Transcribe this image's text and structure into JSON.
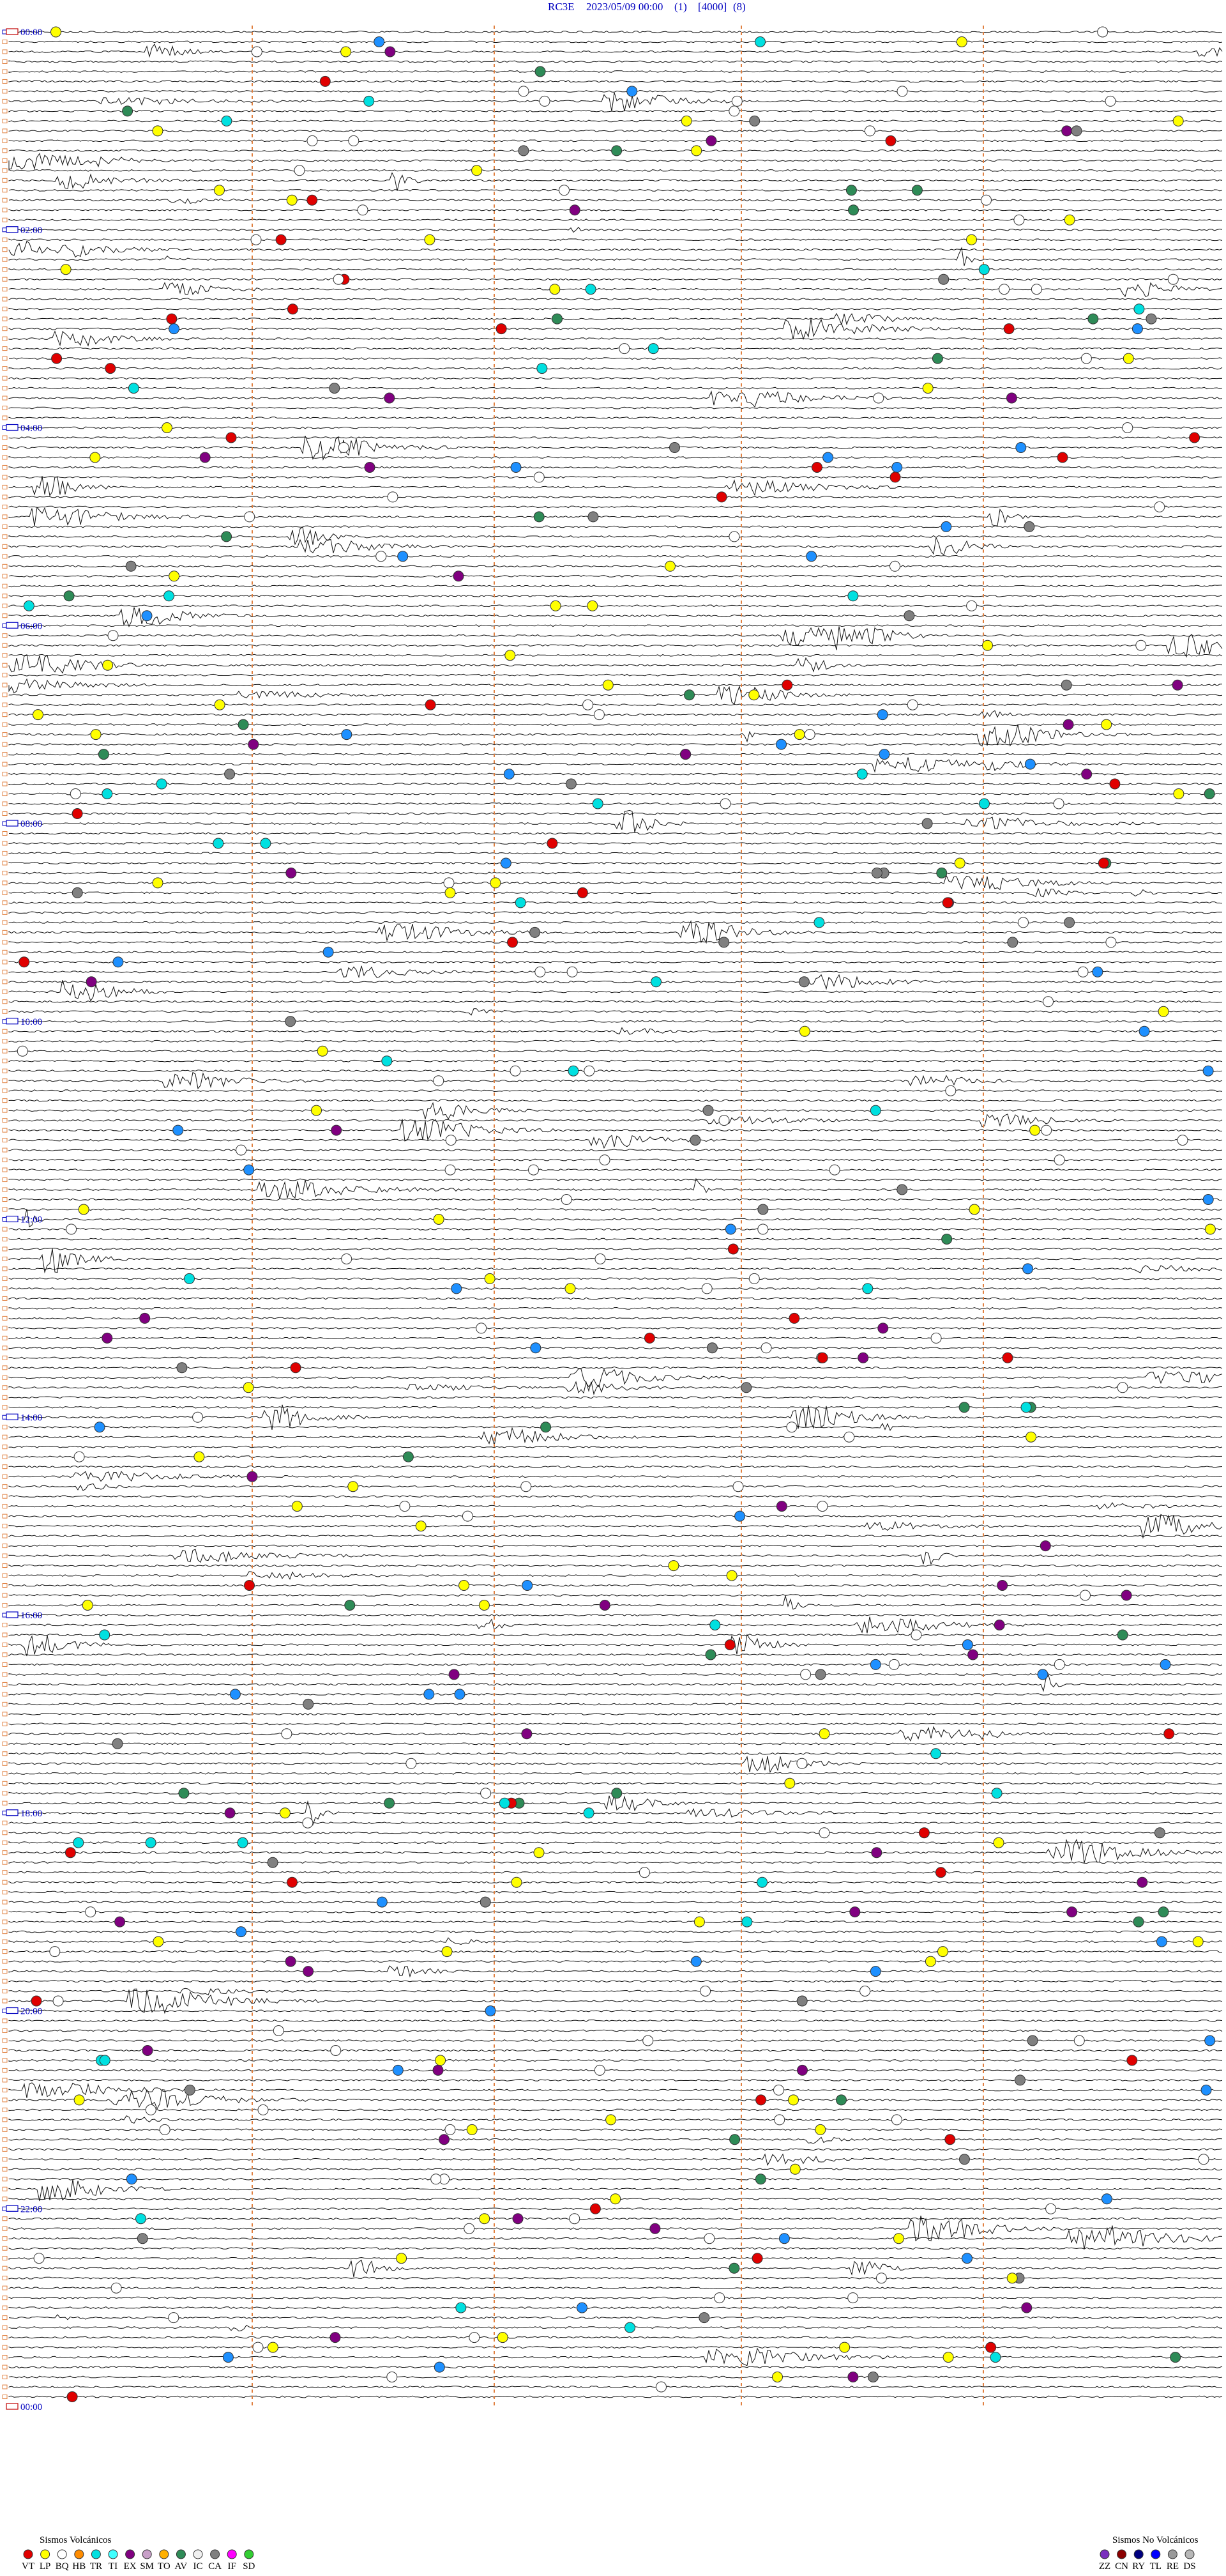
{
  "header": {
    "parts": [
      "RC3E",
      "2023/05/09 00:00",
      "(1)",
      "[4000]",
      "(8)"
    ]
  },
  "time_labels": [
    "00:00",
    "02:00",
    "04:00",
    "06:00",
    "08:00",
    "10:00",
    "12:00",
    "14:00",
    "16:00",
    "18:00",
    "20:00",
    "22:00",
    "00:00"
  ],
  "legend": {
    "volcanic": {
      "title": "Sismos Volcánicos",
      "items": [
        {
          "code": "VT",
          "color": "#e00000"
        },
        {
          "code": "LP",
          "color": "#ffff00"
        },
        {
          "code": "BQ",
          "color": "#ffffff"
        },
        {
          "code": "HB",
          "color": "#ff8c00"
        },
        {
          "code": "TR",
          "color": "#00e0e0"
        },
        {
          "code": "TI",
          "color": "#40ffff"
        },
        {
          "code": "EX",
          "color": "#800080"
        },
        {
          "code": "SM",
          "color": "#c8a0c8"
        },
        {
          "code": "TO",
          "color": "#ffb000"
        },
        {
          "code": "AV",
          "color": "#2e8b57"
        },
        {
          "code": "IC",
          "color": "#f0f0f0"
        },
        {
          "code": "CA",
          "color": "#808080"
        },
        {
          "code": "IF",
          "color": "#ff00ff"
        },
        {
          "code": "SD",
          "color": "#32cd32"
        }
      ]
    },
    "non_volcanic": {
      "title": "Sismos No Volcánicos",
      "items": [
        {
          "code": "ZZ",
          "color": "#7b2fbe"
        },
        {
          "code": "CN",
          "color": "#8b0000"
        },
        {
          "code": "RY",
          "color": "#000080"
        },
        {
          "code": "TL",
          "color": "#0000ff"
        },
        {
          "code": "RE",
          "color": "#9a9a9a"
        },
        {
          "code": "DS",
          "color": "#b8b8b8"
        }
      ]
    }
  }
}
